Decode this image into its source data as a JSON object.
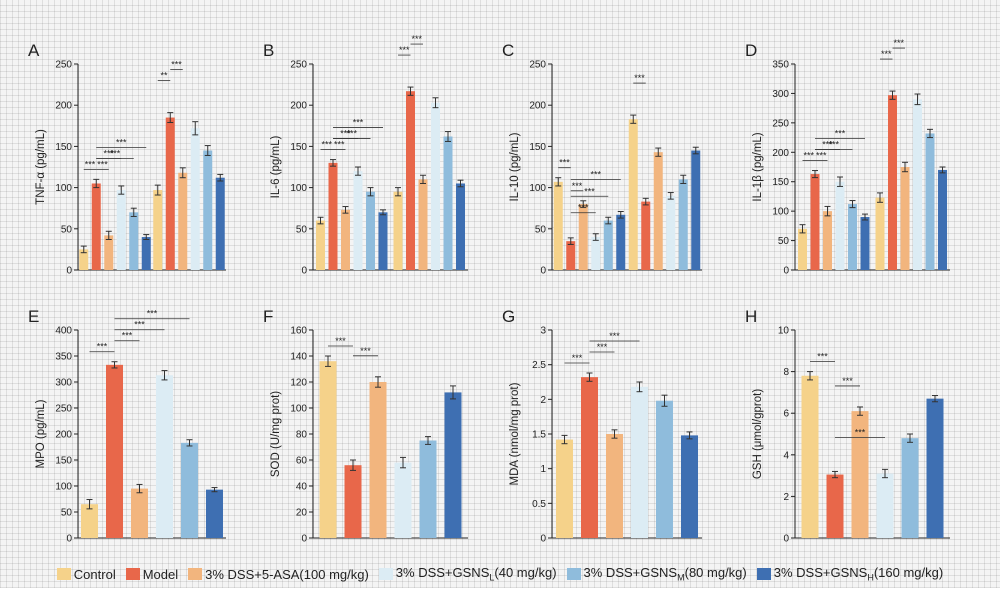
{
  "legend": [
    {
      "label": "Control",
      "sub": "",
      "tail": "",
      "color": "#f5d28a"
    },
    {
      "label": "Model",
      "sub": "",
      "tail": "",
      "color": "#e8674a"
    },
    {
      "label": "3% DSS+5-ASA(100 mg/kg)",
      "sub": "",
      "tail": "",
      "color": "#f2b57e"
    },
    {
      "label": "3% DSS+GSNS",
      "sub": "L",
      "tail": "(40 mg/kg)",
      "color": "#dcecf4"
    },
    {
      "label": "3% DSS+GSNS",
      "sub": "M",
      "tail": "(80 mg/kg)",
      "color": "#8fbcdc"
    },
    {
      "label": "3% DSS+GSNS",
      "sub": "H",
      "tail": "(160 mg/kg)",
      "color": "#3e6fb2"
    }
  ],
  "chart_data": [
    {
      "panel": "A",
      "type": "bar",
      "ylabel": "TNF-α (pg/mL)",
      "ylim": [
        0,
        250
      ],
      "yticks": [
        0,
        50,
        100,
        150,
        200,
        250
      ],
      "groups": [
        {
          "values": [
            25,
            105,
            42,
            97,
            70,
            40
          ],
          "errors": [
            4,
            5,
            5,
            5,
            5,
            3
          ]
        },
        {
          "values": [
            97,
            185,
            118,
            172,
            145,
            112
          ],
          "errors": [
            6,
            6,
            6,
            8,
            6,
            4
          ]
        }
      ],
      "sig": [
        "***",
        "***",
        "***",
        "***",
        "***",
        "**",
        "***"
      ]
    },
    {
      "panel": "B",
      "type": "bar",
      "ylabel": "IL-6 (pg/mL)",
      "ylim": [
        0,
        250
      ],
      "yticks": [
        0,
        50,
        100,
        150,
        200,
        250
      ],
      "groups": [
        {
          "values": [
            60,
            130,
            73,
            120,
            95,
            70
          ],
          "errors": [
            4,
            4,
            4,
            5,
            5,
            3
          ]
        },
        {
          "values": [
            95,
            217,
            110,
            203,
            162,
            105
          ],
          "errors": [
            5,
            5,
            5,
            6,
            6,
            4
          ]
        }
      ],
      "sig": [
        "***",
        "***",
        "***",
        "***",
        "***",
        "***",
        "***"
      ]
    },
    {
      "panel": "C",
      "type": "bar",
      "ylabel": "IL-10 (pg/mL)",
      "ylim": [
        0,
        250
      ],
      "yticks": [
        0,
        50,
        100,
        150,
        200,
        250
      ],
      "groups": [
        {
          "values": [
            107,
            35,
            80,
            40,
            60,
            67
          ],
          "errors": [
            5,
            4,
            4,
            4,
            4,
            4
          ]
        },
        {
          "values": [
            183,
            83,
            143,
            90,
            110,
            145
          ],
          "errors": [
            5,
            4,
            5,
            4,
            5,
            4
          ]
        }
      ],
      "sig": [
        "***",
        "***",
        "***",
        "***",
        "***",
        "***"
      ]
    },
    {
      "panel": "D",
      "type": "bar",
      "ylabel": "IL-1β (pg/mL)",
      "ylim": [
        0,
        350
      ],
      "yticks": [
        0,
        50,
        100,
        150,
        200,
        250,
        300,
        350
      ],
      "groups": [
        {
          "values": [
            70,
            163,
            100,
            150,
            112,
            90
          ],
          "errors": [
            7,
            6,
            8,
            8,
            6,
            5
          ]
        },
        {
          "values": [
            123,
            297,
            175,
            290,
            232,
            170
          ],
          "errors": [
            8,
            7,
            8,
            9,
            7,
            5
          ]
        }
      ],
      "sig": [
        "***",
        "***",
        "***",
        "***",
        "***",
        "***",
        "***"
      ]
    },
    {
      "panel": "E",
      "type": "bar",
      "ylabel": "MPO (pg/mL)",
      "ylim": [
        0,
        400
      ],
      "yticks": [
        0,
        50,
        100,
        150,
        200,
        250,
        300,
        350,
        400
      ],
      "values": [
        65,
        333,
        95,
        313,
        183,
        93
      ],
      "errors": [
        9,
        6,
        8,
        9,
        6,
        4
      ],
      "sig": [
        "***",
        "***",
        "***",
        "***"
      ]
    },
    {
      "panel": "F",
      "type": "bar",
      "ylabel": "SOD (U/mg prot)",
      "ylim": [
        0,
        160
      ],
      "yticks": [
        0,
        20,
        40,
        60,
        80,
        100,
        120,
        140,
        160
      ],
      "values": [
        136,
        56,
        120,
        58,
        75,
        112
      ],
      "errors": [
        4,
        4,
        4,
        4,
        3,
        5
      ],
      "sig": [
        "***",
        "***"
      ]
    },
    {
      "panel": "G",
      "type": "bar",
      "ylabel": "MDA (nmol/mg prot)",
      "ylim": [
        0,
        3.0
      ],
      "yticks": [
        0,
        0.5,
        1.0,
        1.5,
        2.0,
        2.5,
        3.0
      ],
      "values": [
        1.42,
        2.32,
        1.5,
        2.18,
        1.98,
        1.48
      ],
      "errors": [
        0.06,
        0.06,
        0.06,
        0.07,
        0.08,
        0.05
      ],
      "sig": [
        "***",
        "***",
        "***"
      ]
    },
    {
      "panel": "H",
      "type": "bar",
      "ylabel": "GSH (μmol/gprot)",
      "ylim": [
        0,
        10
      ],
      "yticks": [
        0,
        2,
        4,
        6,
        8,
        10
      ],
      "values": [
        7.8,
        3.05,
        6.1,
        3.1,
        4.8,
        6.7
      ],
      "errors": [
        0.2,
        0.15,
        0.2,
        0.2,
        0.2,
        0.15
      ],
      "sig": [
        "***",
        "***",
        "***"
      ]
    }
  ]
}
